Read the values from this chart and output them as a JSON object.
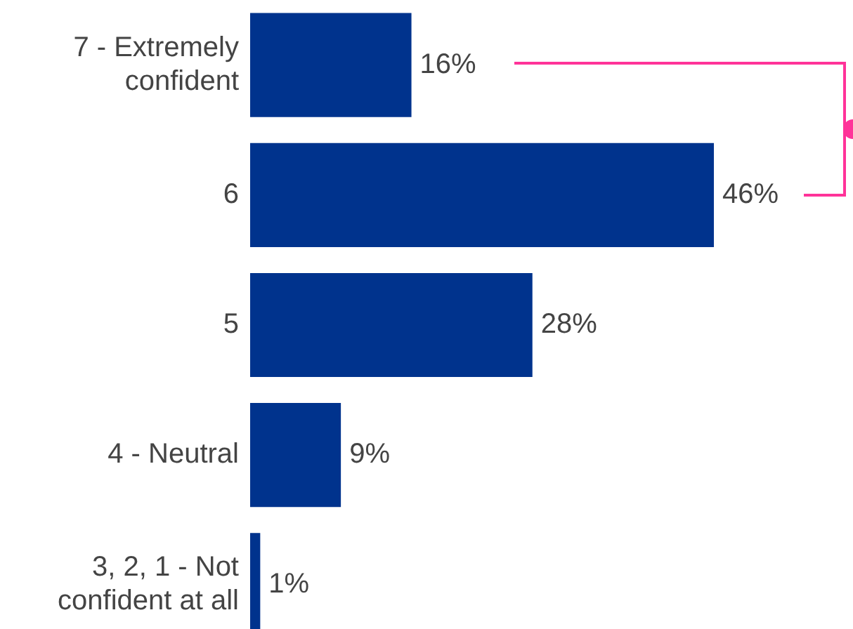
{
  "chart_data": {
    "type": "bar",
    "orientation": "horizontal",
    "categories": [
      "7 - Extremely confident",
      "6",
      "5",
      "4 - Neutral",
      "3, 2, 1 - Not confident at all"
    ],
    "series": [
      {
        "color": "#00338d",
        "values": [
          16,
          46,
          28,
          9,
          1
        ],
        "value_labels": [
          "16%",
          "46%",
          "28%",
          "9%",
          "1%"
        ]
      }
    ],
    "legend": false
  }
}
